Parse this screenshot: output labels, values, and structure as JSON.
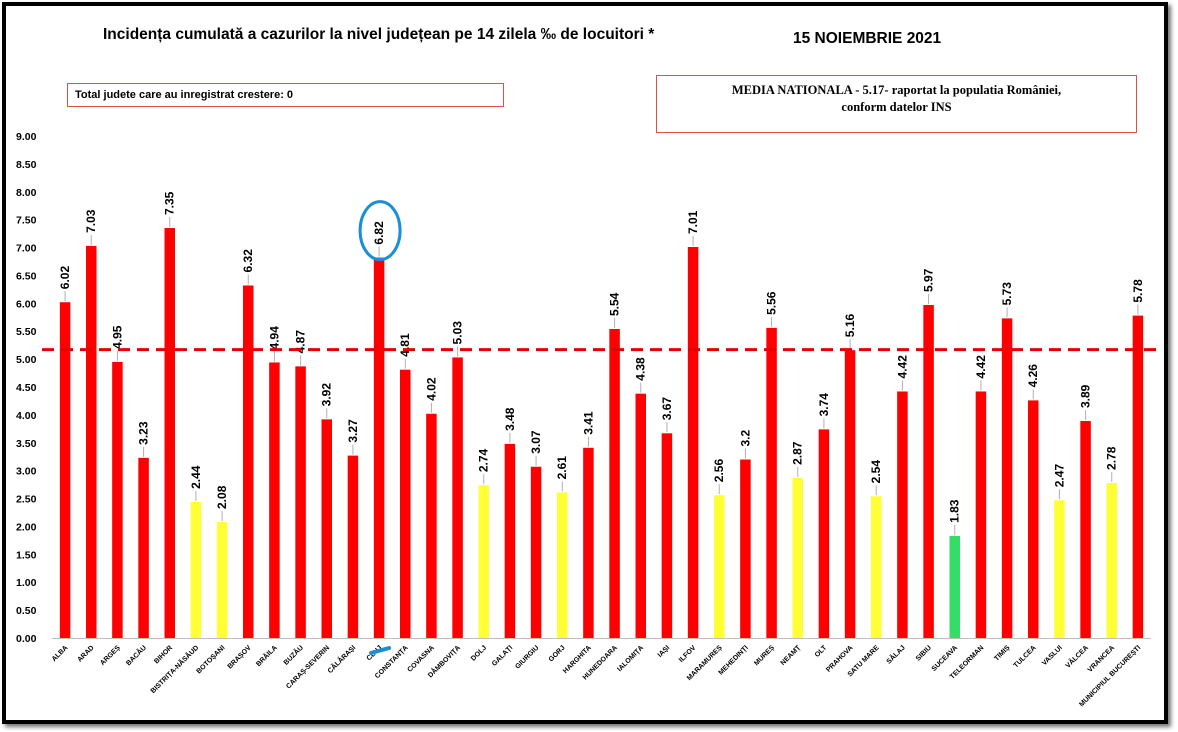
{
  "title": "Incidența cumulată a cazurilor la nivel județean pe 14 zilela ‰ de locuitori *",
  "date": "15 NOIEMBRIE 2021",
  "info_box": "Total judete care au inregistrat crestere: 0",
  "national_box": {
    "line1": "MEDIA NATIONALA  - 5.17-  raportat la populatia României,",
    "line2": "conform datelor INS"
  },
  "colors": {
    "red": "#ff0000",
    "yellow": "#ffff33",
    "green": "#33dd66",
    "reference_line": "#e60000",
    "highlight_circle": "#1a8fd6"
  },
  "chart_data": {
    "type": "bar",
    "ylim": [
      0,
      9
    ],
    "yticks": [
      "0.00",
      "0.50",
      "1.00",
      "1.50",
      "2.00",
      "2.50",
      "3.00",
      "3.50",
      "4.00",
      "4.50",
      "5.00",
      "5.50",
      "6.00",
      "6.50",
      "7.00",
      "7.50",
      "8.00",
      "8.50",
      "9.00"
    ],
    "reference_line": 5.17,
    "highlighted_category": "CLUJ",
    "grid": false,
    "categories": [
      "ALBA",
      "ARAD",
      "ARGEȘ",
      "BACĂU",
      "BIHOR",
      "BISTRIȚA-NĂSĂUD",
      "BOTOȘANI",
      "BRAȘOV",
      "BRĂILA",
      "BUZĂU",
      "CARAȘ-SEVERIN",
      "CĂLĂRAȘI",
      "CLUJ",
      "CONSTANȚA",
      "COVASNA",
      "DÂMBOVIȚA",
      "DOLJ",
      "GALAȚI",
      "GIURGIU",
      "GORJ",
      "HARGHITA",
      "HUNEDOARA",
      "IALOMIȚA",
      "IAȘI",
      "ILFOV",
      "MARAMUREȘ",
      "MEHEDINȚI",
      "MUREȘ",
      "NEAMȚ",
      "OLT",
      "PRAHOVA",
      "SATU MARE",
      "SĂLAJ",
      "SIBIU",
      "SUCEAVA",
      "TELEORMAN",
      "TIMIȘ",
      "TULCEA",
      "VASLUI",
      "VÂLCEA",
      "VRANCEA",
      "MUNICIPIUL BUCUREȘTI"
    ],
    "values": [
      6.02,
      7.03,
      4.95,
      3.23,
      7.35,
      2.44,
      2.08,
      6.32,
      4.94,
      4.87,
      3.92,
      3.27,
      6.82,
      4.81,
      4.02,
      5.03,
      2.74,
      3.48,
      3.07,
      2.61,
      3.41,
      5.54,
      4.38,
      3.67,
      7.01,
      2.56,
      3.2,
      5.56,
      2.87,
      3.74,
      5.16,
      2.54,
      4.42,
      5.97,
      1.83,
      4.42,
      5.73,
      4.26,
      2.47,
      3.89,
      2.78,
      5.78
    ],
    "value_labels": [
      "6.02",
      "7.03",
      "4.95",
      "3.23",
      "7.35",
      "2.44",
      "2.08",
      "6.32",
      "4.94",
      "4.87",
      "3.92",
      "3.27",
      "6.82",
      "4.81",
      "4.02",
      "5.03",
      "2.74",
      "3.48",
      "3.07",
      "2.61",
      "3.41",
      "5.54",
      "4.38",
      "3.67",
      "7.01",
      "2.56",
      "3.2",
      "5.56",
      "2.87",
      "3.74",
      "5.16",
      "2.54",
      "4.42",
      "5.97",
      "1.83",
      "4.42",
      "5.73",
      "4.26",
      "2.47",
      "3.89",
      "2.78",
      "5.78"
    ],
    "bar_colors": [
      "red",
      "red",
      "red",
      "red",
      "red",
      "yellow",
      "yellow",
      "red",
      "red",
      "red",
      "red",
      "red",
      "red",
      "red",
      "red",
      "red",
      "yellow",
      "red",
      "red",
      "yellow",
      "red",
      "red",
      "red",
      "red",
      "red",
      "yellow",
      "red",
      "red",
      "yellow",
      "red",
      "red",
      "yellow",
      "red",
      "red",
      "green",
      "red",
      "red",
      "red",
      "yellow",
      "red",
      "yellow",
      "red"
    ]
  }
}
